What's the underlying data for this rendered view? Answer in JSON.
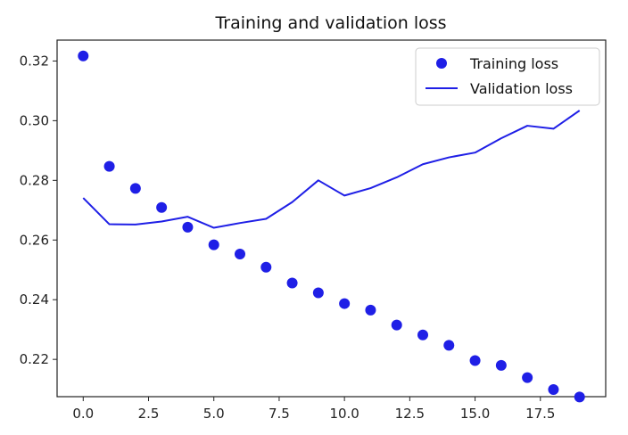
{
  "chart_data": {
    "type": "line",
    "title": "Training and validation loss",
    "xlabel": "",
    "ylabel": "",
    "xlim": [
      -1.0,
      20.0
    ],
    "ylim": [
      0.2075,
      0.327
    ],
    "grid": false,
    "legend_position": "top-right",
    "x_ticks": [
      0.0,
      2.5,
      5.0,
      7.5,
      10.0,
      12.5,
      15.0,
      17.5
    ],
    "x_tick_labels": [
      "0.0",
      "2.5",
      "5.0",
      "7.5",
      "10.0",
      "12.5",
      "15.0",
      "17.5"
    ],
    "y_ticks": [
      0.22,
      0.24,
      0.26,
      0.28,
      0.3,
      0.32
    ],
    "y_tick_labels": [
      "0.22",
      "0.24",
      "0.26",
      "0.28",
      "0.30",
      "0.32"
    ],
    "x": [
      0,
      1,
      2,
      3,
      4,
      5,
      6,
      7,
      8,
      9,
      10,
      11,
      12,
      13,
      14,
      15,
      16,
      17,
      18,
      19
    ],
    "series": [
      {
        "name": "Training loss",
        "style": "points",
        "color": "#1f1fe6",
        "values": [
          0.3217,
          0.2847,
          0.2773,
          0.2709,
          0.2643,
          0.2584,
          0.2553,
          0.2509,
          0.2456,
          0.2423,
          0.2387,
          0.2365,
          0.2315,
          0.2282,
          0.2247,
          0.2196,
          0.218,
          0.2139,
          0.2099,
          0.2074
        ]
      },
      {
        "name": "Validation loss",
        "style": "line",
        "color": "#1f1fe6",
        "values": [
          0.2741,
          0.2653,
          0.2652,
          0.2662,
          0.2678,
          0.2641,
          0.2657,
          0.2671,
          0.2727,
          0.28,
          0.2749,
          0.2774,
          0.281,
          0.2854,
          0.2877,
          0.2893,
          0.2941,
          0.2983,
          0.2973,
          0.3034
        ]
      }
    ]
  }
}
